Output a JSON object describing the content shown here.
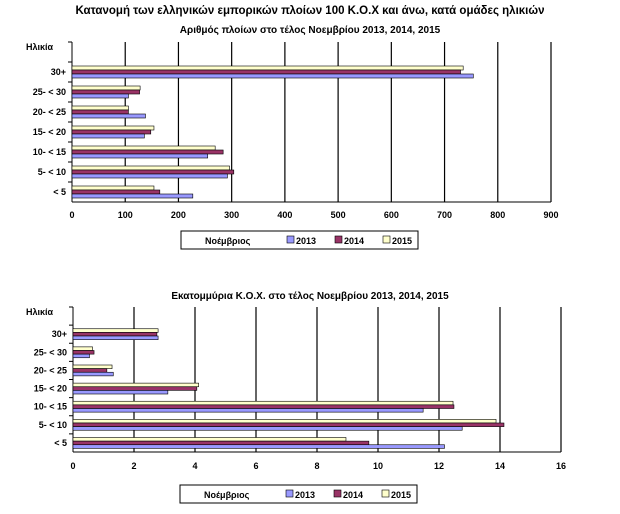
{
  "title": "Κατανομή των ελληνικών εμπορικών πλοίων 100 Κ.Ο.Χ και άνω, κατά ομάδες ηλικιών",
  "colors": {
    "2013": "#9999ff",
    "2014": "#993366",
    "2015": "#ffffcc"
  },
  "chart_data": [
    {
      "type": "bar",
      "orientation": "horizontal",
      "title": "Αριθμός πλοίων στο τέλος Νοεμβρίου 2013, 2014, 2015",
      "ylabel": "Ηλικία",
      "categories": [
        "30+",
        "25- < 30",
        "20- < 25",
        "15- < 20",
        "10- < 15",
        "5- < 10",
        "<  5"
      ],
      "xlim": [
        0,
        900
      ],
      "xticks": [
        "0",
        "100",
        "200",
        "300",
        "400",
        "500",
        "600",
        "700",
        "800",
        "900"
      ],
      "grid": true,
      "legend": {
        "title": "Νοέμβριος",
        "position": "bottom"
      },
      "series": [
        {
          "name": "2013",
          "values": [
            754,
            106,
            138,
            136,
            255,
            292,
            227
          ]
        },
        {
          "name": "2014",
          "values": [
            730,
            127,
            106,
            148,
            284,
            304,
            165
          ]
        },
        {
          "name": "2015",
          "values": [
            735,
            128,
            106,
            154,
            269,
            296,
            154
          ]
        }
      ]
    },
    {
      "type": "bar",
      "orientation": "horizontal",
      "title": "Εκατομμύρια Κ.Ο.Χ. στο τέλος Νοεμβρίου 2013, 2014, 2015",
      "ylabel": "Ηλικία",
      "categories": [
        "30+",
        "25- < 30",
        "20- < 25",
        "15- < 20",
        "10- < 15",
        "5- < 10",
        "<  5"
      ],
      "xlim": [
        0,
        16
      ],
      "xticks": [
        "0",
        "2",
        "4",
        "6",
        "8",
        "10",
        "12",
        "14",
        "16"
      ],
      "grid": true,
      "legend": {
        "title": "Νοέμβριος",
        "position": "bottom"
      },
      "series": [
        {
          "name": "2013",
          "values": [
            2.79,
            0.54,
            1.32,
            3.11,
            11.48,
            12.76,
            12.18
          ]
        },
        {
          "name": "2014",
          "values": [
            2.75,
            0.69,
            1.11,
            4.06,
            12.49,
            14.13,
            9.7
          ]
        },
        {
          "name": "2015",
          "values": [
            2.79,
            0.64,
            1.28,
            4.12,
            12.46,
            13.87,
            8.95
          ]
        }
      ]
    }
  ]
}
